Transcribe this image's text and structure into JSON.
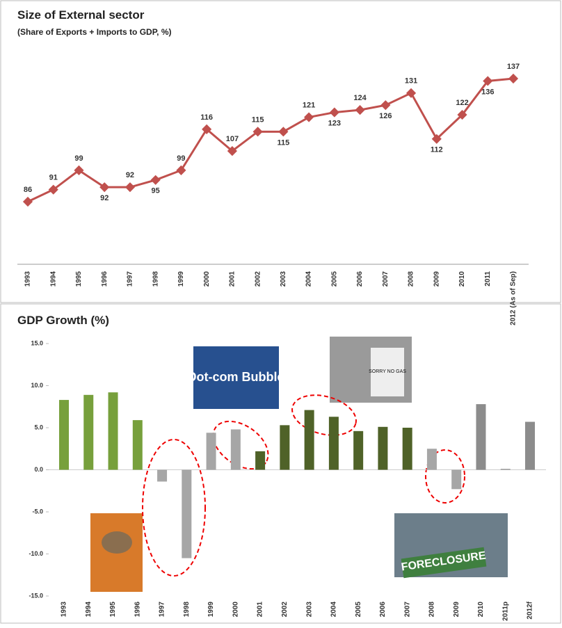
{
  "chart_data": [
    {
      "type": "line",
      "title": "Size of External sector",
      "subtitle": "(Share of Exports + Imports to GDP, %)",
      "categories": [
        "1993",
        "1994",
        "1995",
        "1996",
        "1997",
        "1998",
        "1999",
        "2000",
        "2001",
        "2002",
        "2003",
        "2004",
        "2005",
        "2006",
        "2007",
        "2008",
        "2009",
        "2010",
        "2011",
        "2012 (As of Sep)"
      ],
      "values": [
        86,
        91,
        99,
        92,
        92,
        95,
        99,
        116,
        107,
        115,
        115,
        121,
        123,
        124,
        126,
        131,
        112,
        122,
        136,
        137
      ],
      "color": "#c0504d"
    },
    {
      "type": "bar",
      "title": "GDP Growth (%)",
      "categories": [
        "1993",
        "1994",
        "1995",
        "1996",
        "1997",
        "1998",
        "1999",
        "2000",
        "2001",
        "2002",
        "2003",
        "2004",
        "2005",
        "2006",
        "2007",
        "2008",
        "2009",
        "2010",
        "2011p",
        "2012f"
      ],
      "values": [
        8.3,
        8.9,
        9.2,
        5.9,
        -1.4,
        -10.5,
        4.4,
        4.8,
        2.2,
        5.3,
        7.1,
        6.3,
        4.6,
        5.1,
        5.0,
        2.5,
        -2.3,
        7.8,
        0.1,
        5.7
      ],
      "colors": [
        "#77a03c",
        "#77a03c",
        "#77a03c",
        "#77a03c",
        "#a6a6a6",
        "#a6a6a6",
        "#a6a6a6",
        "#a6a6a6",
        "#4f6228",
        "#4f6228",
        "#4f6228",
        "#4f6228",
        "#4f6228",
        "#4f6228",
        "#4f6228",
        "#a6a6a6",
        "#a6a6a6",
        "#8c8c8c",
        "#8c8c8c",
        "#8c8c8c"
      ],
      "ylim": [
        -15,
        15
      ],
      "yticks": [
        {
          "value": 15,
          "label": "15.0"
        },
        {
          "value": 10,
          "label": "10.0"
        },
        {
          "value": 5,
          "label": "5.0"
        },
        {
          "value": 0,
          "label": "0.0"
        },
        {
          "value": -5,
          "label": "-5.0"
        },
        {
          "value": -10,
          "label": "-10.0"
        },
        {
          "value": -15,
          "label": "-15.0"
        }
      ],
      "annotations": [
        "Dot-com Bubble",
        "SORRY NO GAS",
        "FORECLOSURE"
      ]
    }
  ]
}
